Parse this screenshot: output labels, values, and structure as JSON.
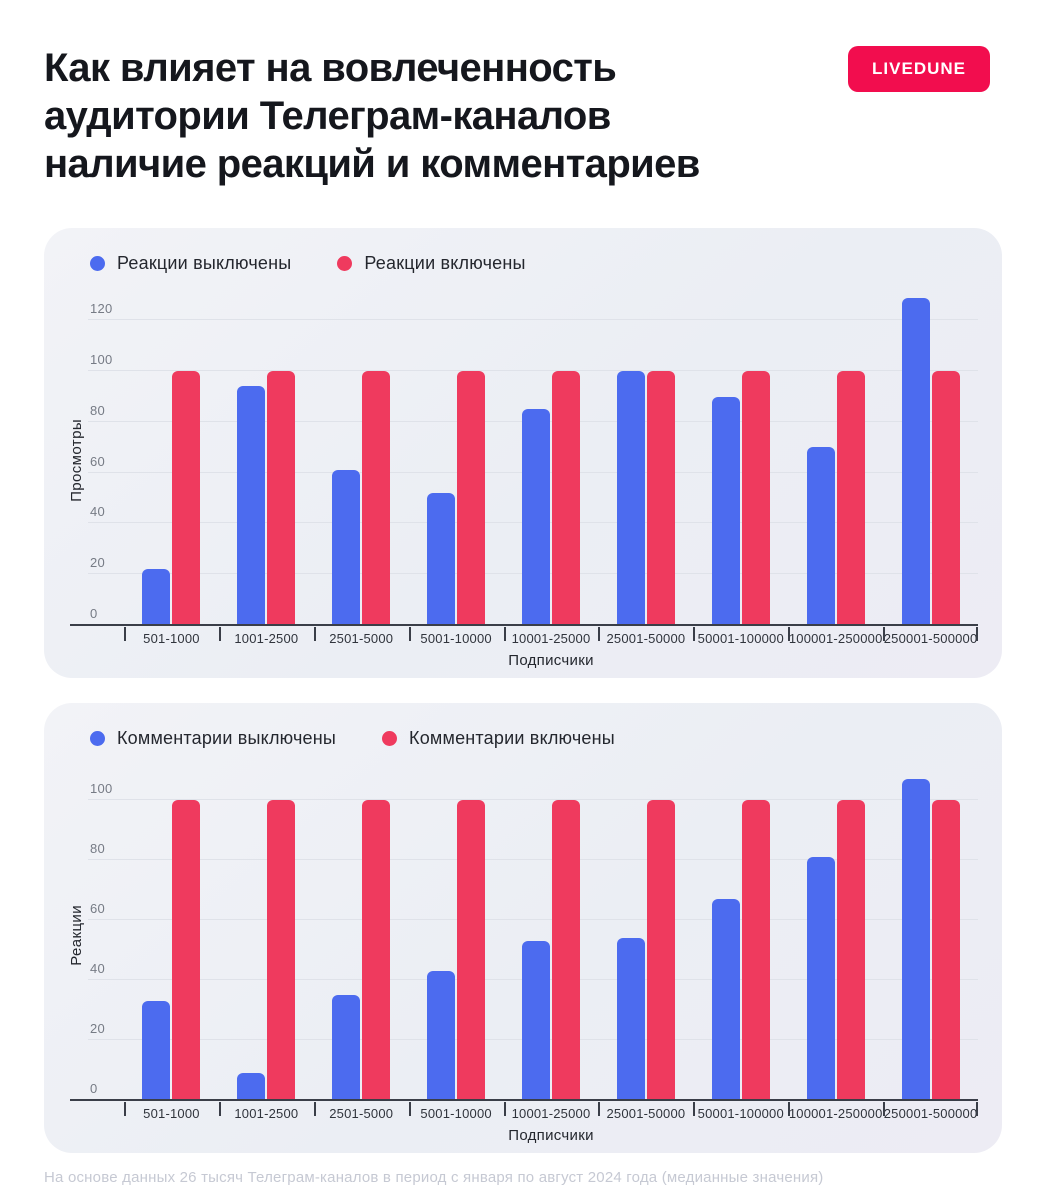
{
  "header": {
    "title": "Как влияет на вовлеченность аудитории Телеграм-каналов наличие реакций и комментариев",
    "title_lines": [
      "Как влияет на вовлеченность",
      "аудитории Телеграм-каналов",
      "наличие реакций и комментариев"
    ],
    "badge": "LIVEDUNE"
  },
  "colors": {
    "series_off_blue": "#4c6bef",
    "series_on_red": "#ef3a5e",
    "badge_red": "#f20d4e"
  },
  "chart_data": [
    {
      "type": "bar",
      "legend": [
        "Реакции выключены",
        "Реакции включены"
      ],
      "legend_position": "top-left",
      "grid": true,
      "ylabel": "Просмотры",
      "xlabel": "Подписчики",
      "categories": [
        "501-1000",
        "1001-2500",
        "2501-5000",
        "5001-10000",
        "10001-25000",
        "25001-50000",
        "50001-100000",
        "100001-250000",
        "250001-500000"
      ],
      "series": [
        {
          "name": "Реакции выключены",
          "color": "#4c6bef",
          "values": [
            22,
            94,
            61,
            52,
            85,
            100,
            90,
            70,
            129
          ]
        },
        {
          "name": "Реакции включены",
          "color": "#ef3a5e",
          "values": [
            100,
            100,
            100,
            100,
            100,
            100,
            100,
            100,
            100
          ]
        }
      ],
      "yticks": [
        0,
        20,
        40,
        60,
        80,
        100,
        120
      ],
      "ylim": [
        0,
        130
      ]
    },
    {
      "type": "bar",
      "legend": [
        "Комментарии выключены",
        "Комментарии включены"
      ],
      "legend_position": "top-left",
      "grid": true,
      "ylabel": "Реакции",
      "xlabel": "Подписчики",
      "categories": [
        "501-1000",
        "1001-2500",
        "2501-5000",
        "5001-10000",
        "10001-25000",
        "25001-50000",
        "50001-100000",
        "100001-250000",
        "250001-500000"
      ],
      "series": [
        {
          "name": "Комментарии выключены",
          "color": "#4c6bef",
          "values": [
            33,
            9,
            35,
            43,
            53,
            54,
            67,
            81,
            107
          ]
        },
        {
          "name": "Комментарии включены",
          "color": "#ef3a5e",
          "values": [
            100,
            100,
            100,
            100,
            100,
            100,
            100,
            100,
            100
          ]
        }
      ],
      "yticks": [
        0,
        20,
        40,
        60,
        80,
        100
      ],
      "ylim": [
        0,
        110
      ]
    }
  ],
  "footer": {
    "note": "На основе данных 26 тысяч Телеграм-каналов в период с января по август 2024 года (медианные значения)"
  }
}
